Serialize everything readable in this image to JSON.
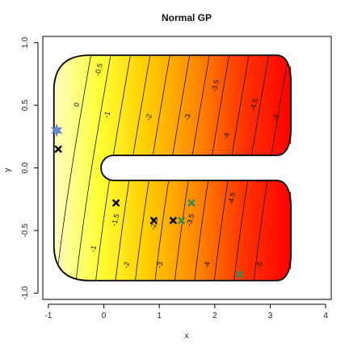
{
  "chart_data": {
    "type": "heatmap",
    "title": "Normal GP",
    "xlabel": "x",
    "ylabel": "y",
    "xlim": [
      -1.1,
      4.1
    ],
    "ylim": [
      -1.05,
      1.05
    ],
    "x_ticks": [
      -1,
      0,
      1,
      2,
      3,
      4
    ],
    "y_ticks": [
      -1.0,
      -0.5,
      0.0,
      0.5,
      1.0
    ],
    "x_tick_labels": [
      "-1",
      "0",
      "1",
      "2",
      "3",
      "4"
    ],
    "y_tick_labels": [
      "-1.0",
      "-0.5",
      "0.0",
      "0.5",
      "1.0"
    ],
    "colormap": [
      "#ffffcc",
      "#ffff33",
      "#ffcc00",
      "#ff8800",
      "#ff3300",
      "#ff0000"
    ],
    "value_range": [
      0.5,
      -5.5
    ],
    "region": {
      "shape": "horseshoe",
      "x_range": [
        -0.9,
        3.2
      ],
      "y_range": [
        -0.9,
        0.9
      ],
      "slot_y_range": [
        -0.1,
        0.1
      ],
      "slot_x_start": -0.05
    },
    "contour_levels": [
      0.0,
      -0.5,
      -1.0,
      -1.5,
      -2.0,
      -2.5,
      -3.0,
      -3.5,
      -4.0,
      -4.5,
      -5.0
    ],
    "contour_labels": [
      {
        "text": "-0.5",
        "x": -0.05,
        "y": 0.78
      },
      {
        "text": "0",
        "x": -0.45,
        "y": 0.5
      },
      {
        "text": "-1",
        "x": 0.1,
        "y": 0.42
      },
      {
        "text": "-2",
        "x": 0.85,
        "y": 0.4
      },
      {
        "text": "-3",
        "x": 1.55,
        "y": 0.4
      },
      {
        "text": "-3.5",
        "x": 2.05,
        "y": 0.65
      },
      {
        "text": "-4",
        "x": 2.25,
        "y": 0.25
      },
      {
        "text": "-4.5",
        "x": 2.75,
        "y": 0.5
      },
      {
        "text": "-5",
        "x": 3.15,
        "y": 0.4
      },
      {
        "text": "-1",
        "x": -0.15,
        "y": -0.65
      },
      {
        "text": "-1.5",
        "x": 0.25,
        "y": -0.42
      },
      {
        "text": "-2",
        "x": 0.45,
        "y": -0.78
      },
      {
        "text": "-2.5",
        "x": 0.95,
        "y": -0.45
      },
      {
        "text": "-3",
        "x": 1.05,
        "y": -0.78
      },
      {
        "text": "-3.5",
        "x": 1.6,
        "y": -0.42
      },
      {
        "text": "-4",
        "x": 1.9,
        "y": -0.78
      },
      {
        "text": "-4.5",
        "x": 2.35,
        "y": -0.25
      },
      {
        "text": "-5",
        "x": 2.85,
        "y": -0.78
      }
    ],
    "series": [
      {
        "marker": "cross",
        "color": "#000000",
        "points": [
          [
            -0.82,
            0.15
          ],
          [
            0.22,
            -0.28
          ],
          [
            0.9,
            -0.42
          ],
          [
            1.25,
            -0.42
          ]
        ]
      },
      {
        "marker": "cross",
        "color": "#2e8b57",
        "points": [
          [
            1.4,
            -0.42
          ],
          [
            1.58,
            -0.28
          ],
          [
            2.45,
            -0.85
          ]
        ]
      },
      {
        "marker": "star",
        "color": "#6a8fd8",
        "points": [
          [
            -0.85,
            0.3
          ]
        ]
      }
    ]
  }
}
